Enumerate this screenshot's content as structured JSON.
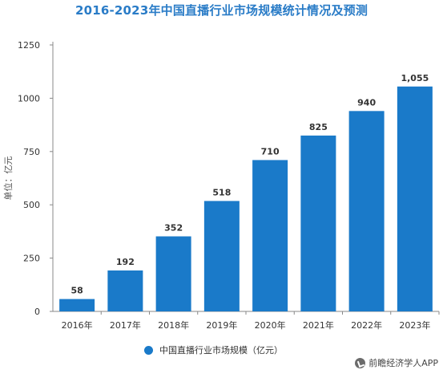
{
  "chart_data": {
    "type": "bar",
    "title": "2016-2023年中国直播行业市场规模统计情况及预测",
    "ylabel": "单位：亿元",
    "xlabel": "",
    "categories": [
      "2016年",
      "2017年",
      "2018年",
      "2019年",
      "2020年",
      "2021年",
      "2022年",
      "2023年"
    ],
    "series": [
      {
        "name": "中国直播行业市场规模（亿元）",
        "values": [
          58,
          192,
          352,
          518,
          710,
          825,
          940,
          1055
        ],
        "labels": [
          "58",
          "192",
          "352",
          "518",
          "710",
          "825",
          "940",
          "1,055"
        ]
      }
    ],
    "yticks": [
      0,
      250,
      500,
      750,
      1000,
      1250
    ],
    "ytick_labels": [
      "0",
      "250",
      "500",
      "750",
      "1000",
      "1250"
    ],
    "ylim": [
      0,
      1250
    ],
    "grid": false,
    "legend_position": "bottom",
    "colors": {
      "bar": "#1a7ac9",
      "title": "#2a7cc7",
      "axis": "#888888"
    }
  },
  "watermark": {
    "text": "前瞻经济学人APP",
    "icon": "qianzhan-logo-icon"
  }
}
